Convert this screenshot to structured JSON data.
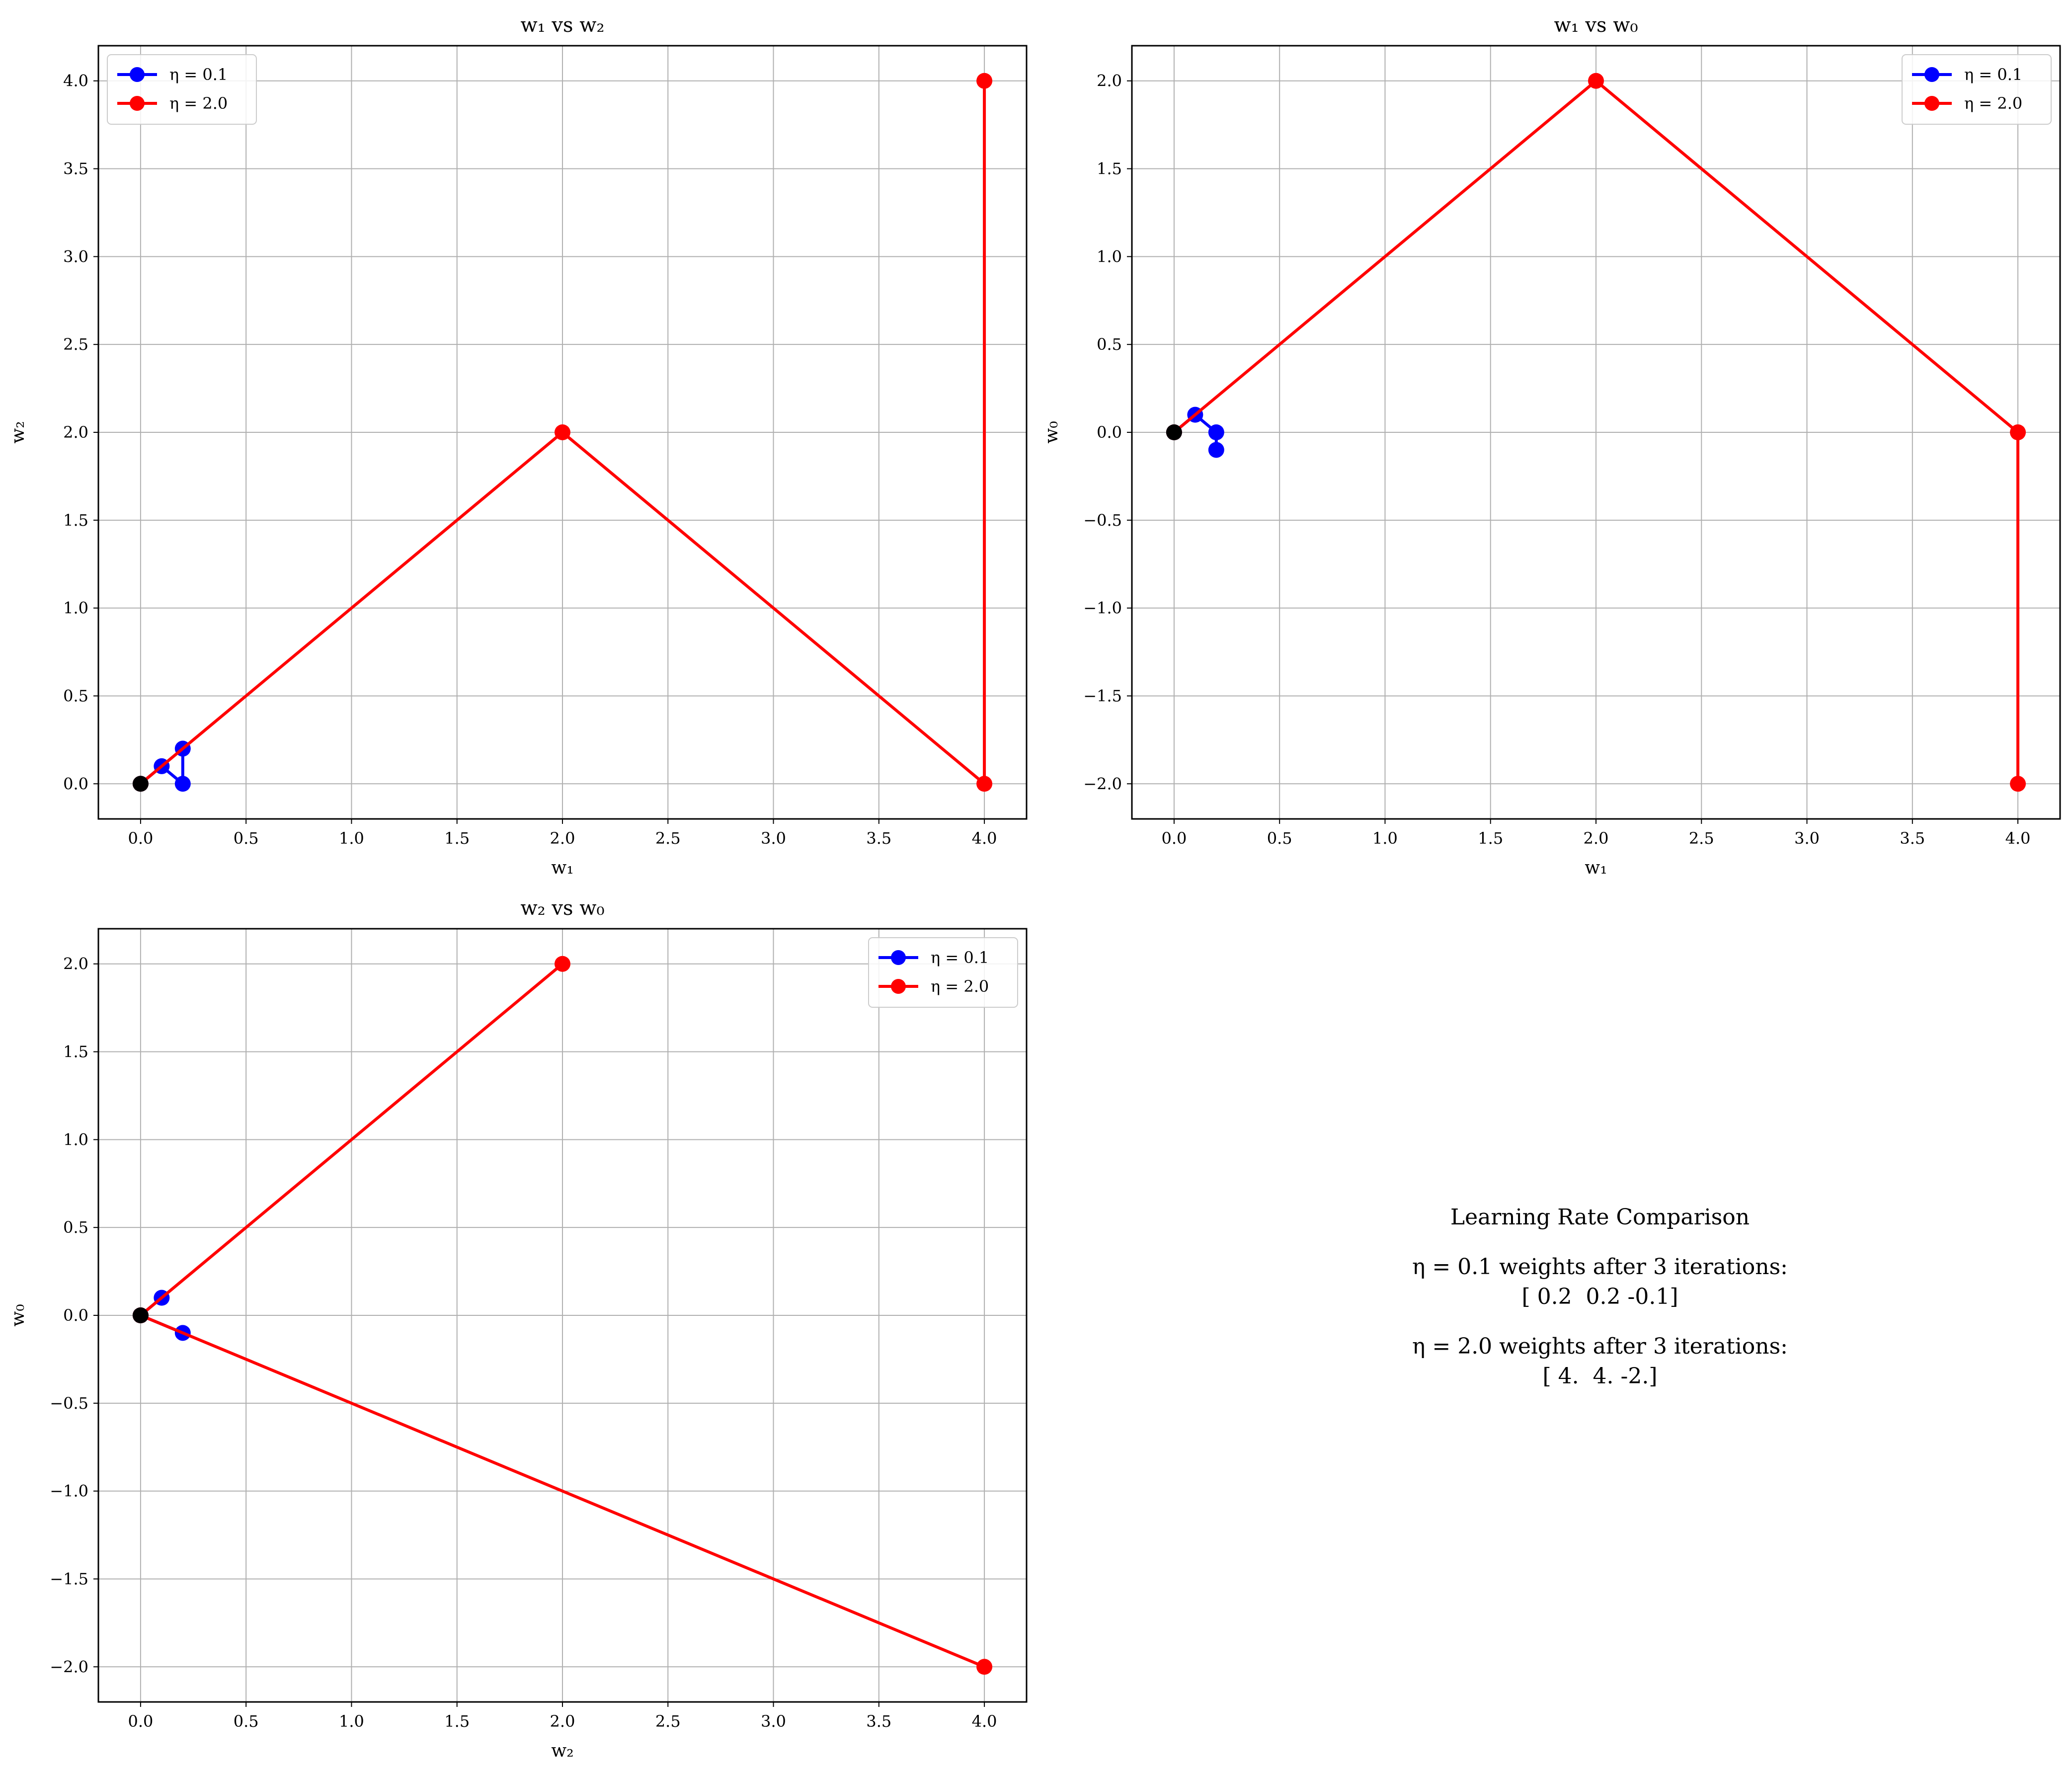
{
  "colors": {
    "lr_small": "#0000ff",
    "lr_large": "#ff0000",
    "origin": "#000000",
    "grid": "#b0b0b0"
  },
  "chart_data": [
    {
      "type": "line",
      "title": "w₁ vs w₂",
      "xlabel": "w₁",
      "ylabel": "w₂",
      "xlim": [
        -0.2,
        4.2
      ],
      "ylim": [
        -0.2,
        4.2
      ],
      "xticks": [
        "0.0",
        "0.5",
        "1.0",
        "1.5",
        "2.0",
        "2.5",
        "3.0",
        "3.5",
        "4.0"
      ],
      "yticks": [
        "0.0",
        "0.5",
        "1.0",
        "1.5",
        "2.0",
        "2.5",
        "3.0",
        "3.5",
        "4.0"
      ],
      "grid": true,
      "legend_position": "top-left",
      "series": [
        {
          "name": "η = 0.1",
          "color": "#0000ff",
          "x": [
            0,
            0.1,
            0.2,
            0.2
          ],
          "y": [
            0,
            0.1,
            0,
            0.2
          ]
        },
        {
          "name": "η = 2.0",
          "color": "#ff0000",
          "x": [
            0,
            2,
            4,
            4
          ],
          "y": [
            0,
            2,
            0,
            4
          ]
        }
      ],
      "origin_point": [
        0,
        0
      ]
    },
    {
      "type": "line",
      "title": "w₁ vs w₀",
      "xlabel": "w₁",
      "ylabel": "w₀",
      "xlim": [
        -0.2,
        4.2
      ],
      "ylim": [
        -2.2,
        2.2
      ],
      "xticks": [
        "0.0",
        "0.5",
        "1.0",
        "1.5",
        "2.0",
        "2.5",
        "3.0",
        "3.5",
        "4.0"
      ],
      "yticks": [
        "−2.0",
        "−1.5",
        "−1.0",
        "−0.5",
        "0.0",
        "0.5",
        "1.0",
        "1.5",
        "2.0"
      ],
      "grid": true,
      "legend_position": "top-right",
      "series": [
        {
          "name": "η = 0.1",
          "color": "#0000ff",
          "x": [
            0,
            0.1,
            0.2,
            0.2
          ],
          "y": [
            0,
            0.1,
            0,
            -0.1
          ]
        },
        {
          "name": "η = 2.0",
          "color": "#ff0000",
          "x": [
            0,
            2,
            4,
            4
          ],
          "y": [
            0,
            2,
            0,
            -2
          ]
        }
      ],
      "origin_point": [
        0,
        0
      ]
    },
    {
      "type": "line",
      "title": "w₂ vs w₀",
      "xlabel": "w₂",
      "ylabel": "w₀",
      "xlim": [
        -0.2,
        4.2
      ],
      "ylim": [
        -2.2,
        2.2
      ],
      "xticks": [
        "0.0",
        "0.5",
        "1.0",
        "1.5",
        "2.0",
        "2.5",
        "3.0",
        "3.5",
        "4.0"
      ],
      "yticks": [
        "−2.0",
        "−1.5",
        "−1.0",
        "−0.5",
        "0.0",
        "0.5",
        "1.0",
        "1.5",
        "2.0"
      ],
      "grid": true,
      "legend_position": "top-right",
      "series": [
        {
          "name": "η = 0.1",
          "color": "#0000ff",
          "x": [
            0,
            0.1,
            0,
            0.2
          ],
          "y": [
            0,
            0.1,
            0,
            -0.1
          ]
        },
        {
          "name": "η = 2.0",
          "color": "#ff0000",
          "x": [
            0,
            2,
            0,
            4
          ],
          "y": [
            0,
            2,
            0,
            -2
          ]
        }
      ],
      "origin_point": [
        0,
        0
      ]
    }
  ],
  "summary": {
    "title": "Learning Rate Comparison",
    "line1": "η = 0.1 weights after 3 iterations:",
    "line2": "[ 0.2  0.2 -0.1]",
    "line3": "η = 2.0 weights after 3 iterations:",
    "line4": "[ 4.  4. -2.]"
  }
}
